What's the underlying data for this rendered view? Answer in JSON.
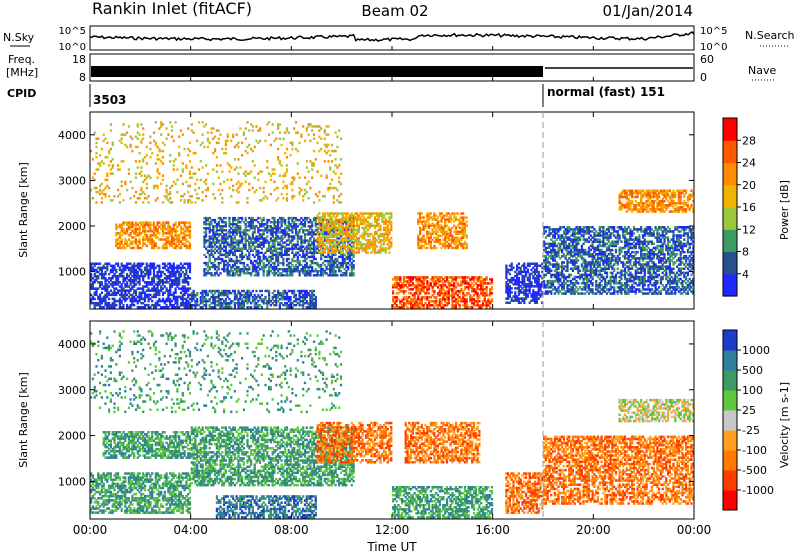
{
  "header": {
    "station": "Rankin Inlet (fitACF)",
    "beam": "Beam 02",
    "date": "01/Jan/2014"
  },
  "noise_panel": {
    "left_label": "N.Sky",
    "right_label": "N.Search",
    "ticks": [
      "10^5",
      "10^0"
    ]
  },
  "freq_panel": {
    "left_label_1": "Freq.",
    "left_label_2": "[MHz]",
    "left_ticks": [
      "18",
      "8"
    ],
    "right_label": "Nave",
    "right_ticks": [
      "60",
      "0"
    ]
  },
  "cpid_panel": {
    "label": "CPID",
    "segments": [
      {
        "text": "3503",
        "start_hour": 0
      },
      {
        "text": "normal (fast) 151",
        "start_hour": 18.05
      }
    ]
  },
  "x_axis": {
    "title": "Time UT",
    "ticks": [
      "00:00",
      "04:00",
      "08:00",
      "12:00",
      "16:00",
      "20:00",
      "00:00"
    ],
    "range_hours": [
      0,
      24
    ]
  },
  "chart_data": [
    {
      "type": "heatmap",
      "title": "Power",
      "ylabel": "Slant Range [km]",
      "yticks": [
        "1000",
        "2000",
        "3000",
        "4000"
      ],
      "ylim": [
        180,
        4500
      ],
      "xlim_hours": [
        0,
        24
      ],
      "colorbar_label": "Power [dB]",
      "colorbar_ticks": [
        "28",
        "24",
        "20",
        "16",
        "12",
        "8",
        "4"
      ],
      "colorbar_colors": [
        "#ff0000",
        "#ff5a00",
        "#ff8c00",
        "#f0b400",
        "#99c83c",
        "#3c9a64",
        "#28508c",
        "#1e28ff"
      ],
      "bands": [
        {
          "t0": 0.0,
          "t1": 4.0,
          "r0": 200,
          "r1": 1200,
          "level": 7
        },
        {
          "t0": 1.0,
          "t1": 4.0,
          "r0": 1500,
          "r1": 2100,
          "level": 2
        },
        {
          "t0": 4.0,
          "t1": 9.0,
          "r0": 200,
          "r1": 600,
          "level": 6
        },
        {
          "t0": 4.5,
          "t1": 10.5,
          "r0": 900,
          "r1": 2200,
          "level": 6
        },
        {
          "t0": 9.0,
          "t1": 12.0,
          "r0": 1400,
          "r1": 2300,
          "level": 3
        },
        {
          "t0": 12.0,
          "t1": 16.0,
          "r0": 200,
          "r1": 900,
          "level": 1
        },
        {
          "t0": 13.0,
          "t1": 15.0,
          "r0": 1500,
          "r1": 2300,
          "level": 2
        },
        {
          "t0": 16.5,
          "t1": 18.0,
          "r0": 300,
          "r1": 1200,
          "level": 7
        },
        {
          "t0": 18.0,
          "t1": 24.0,
          "r0": 500,
          "r1": 2000,
          "level": 6
        },
        {
          "t0": 21.0,
          "t1": 24.0,
          "r0": 2300,
          "r1": 2800,
          "level": 2
        },
        {
          "t0": 0.0,
          "t1": 10.0,
          "r0": 2500,
          "r1": 4300,
          "level": 3
        }
      ]
    },
    {
      "type": "heatmap",
      "title": "Velocity",
      "ylabel": "Slant Range [km]",
      "yticks": [
        "1000",
        "2000",
        "3000",
        "4000"
      ],
      "ylim": [
        180,
        4500
      ],
      "xlim_hours": [
        0,
        24
      ],
      "colorbar_label": "Velocity [m s-1]",
      "colorbar_ticks": [
        "1000",
        "500",
        "100",
        "25",
        "-25",
        "-100",
        "-500",
        "-1000"
      ],
      "colorbar_colors": [
        "#1e3cc8",
        "#2f7f9e",
        "#3c9a64",
        "#5cc83c",
        "#c8c8c8",
        "#ffa020",
        "#ff7800",
        "#ff3c00",
        "#ff0000"
      ],
      "bands": [
        {
          "t0": 0.0,
          "t1": 4.0,
          "r0": 300,
          "r1": 1200,
          "level": 2
        },
        {
          "t0": 0.5,
          "t1": 4.0,
          "r0": 1500,
          "r1": 2100,
          "level": 2
        },
        {
          "t0": 4.0,
          "t1": 10.5,
          "r0": 900,
          "r1": 2200,
          "level": 2
        },
        {
          "t0": 5.0,
          "t1": 9.0,
          "r0": 200,
          "r1": 700,
          "level": 1
        },
        {
          "t0": 9.0,
          "t1": 12.0,
          "r0": 1400,
          "r1": 2300,
          "level": 6
        },
        {
          "t0": 12.0,
          "t1": 16.0,
          "r0": 200,
          "r1": 900,
          "level": 2
        },
        {
          "t0": 12.5,
          "t1": 15.5,
          "r0": 1400,
          "r1": 2300,
          "level": 6
        },
        {
          "t0": 16.5,
          "t1": 18.0,
          "r0": 300,
          "r1": 1200,
          "level": 6
        },
        {
          "t0": 18.0,
          "t1": 24.0,
          "r0": 500,
          "r1": 2000,
          "level": 6
        },
        {
          "t0": 21.0,
          "t1": 24.0,
          "r0": 2300,
          "r1": 2800,
          "level": 4
        },
        {
          "t0": 0.0,
          "t1": 10.0,
          "r0": 2500,
          "r1": 4300,
          "level": 2
        }
      ]
    }
  ]
}
